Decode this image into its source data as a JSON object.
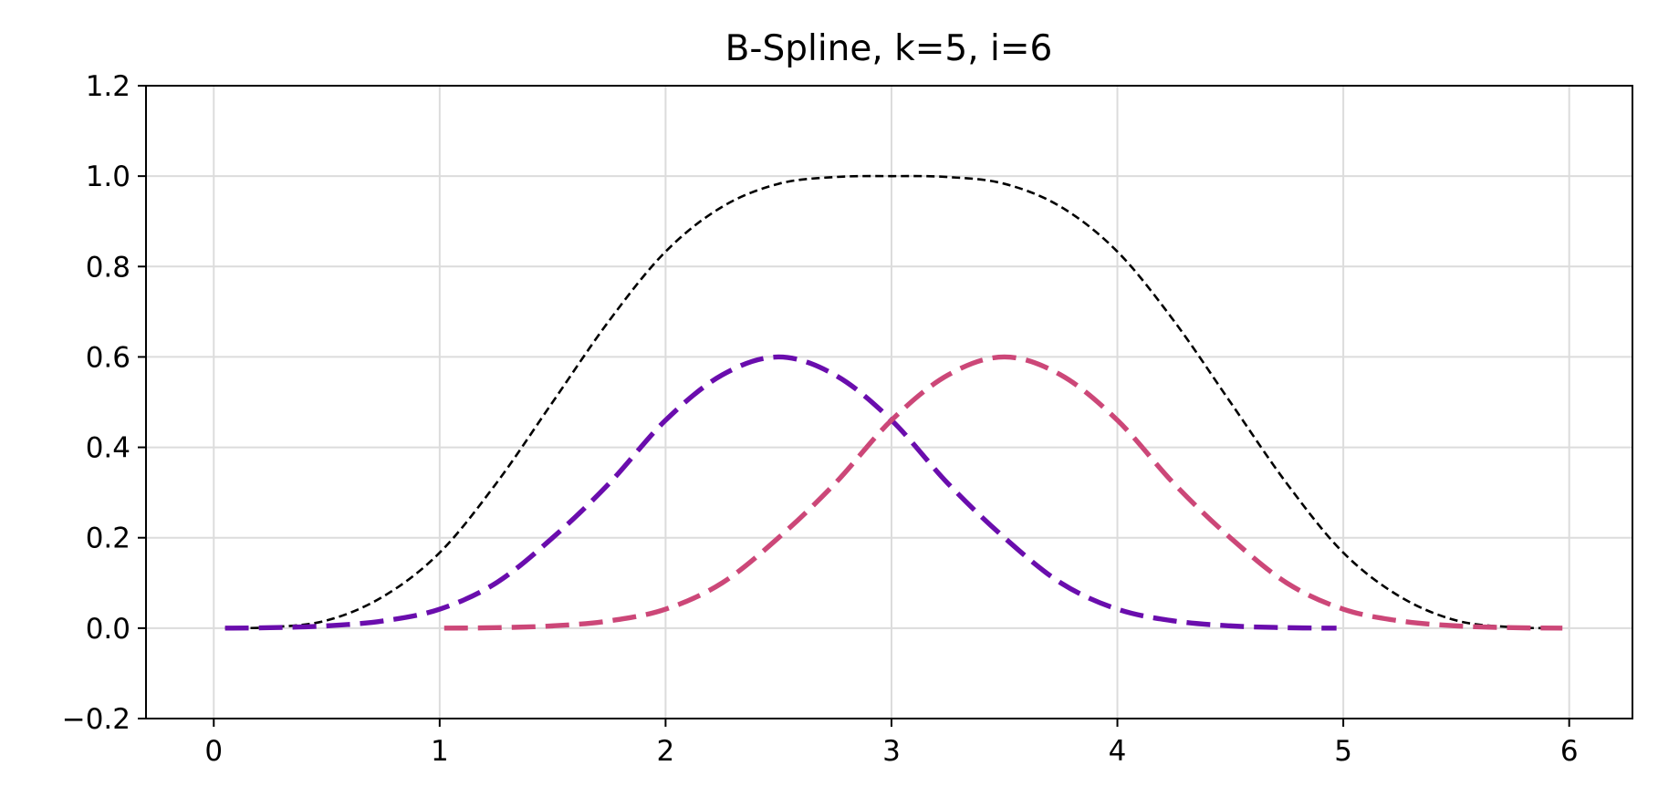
{
  "chart_data": {
    "type": "line",
    "title": "B-Spline, k=5, i=6",
    "xlabel": "",
    "ylabel": "",
    "xlim": [
      -0.3,
      6.28
    ],
    "ylim": [
      -0.2,
      1.2
    ],
    "grid": true,
    "legend": "none",
    "x_ticks": [
      0,
      1,
      2,
      3,
      4,
      5,
      6
    ],
    "x_tick_labels": [
      "0",
      "1",
      "2",
      "3",
      "4",
      "5",
      "6"
    ],
    "y_ticks": [
      -0.2,
      0.0,
      0.2,
      0.4,
      0.6,
      0.8,
      1.0,
      1.2
    ],
    "y_tick_labels": [
      "−0.2",
      "0.0",
      "0.2",
      "0.4",
      "0.6",
      "0.8",
      "1.0",
      "1.2"
    ],
    "series": [
      {
        "color": "#000000",
        "style": "dashed-thin",
        "x": [
          0.05,
          0.25,
          0.5,
          0.75,
          1.0,
          1.25,
          1.5,
          1.75,
          2.0,
          2.25,
          2.5,
          2.75,
          3.0,
          3.25,
          3.5,
          3.75,
          4.0,
          4.25,
          4.5,
          4.75,
          5.0,
          5.25,
          5.5,
          5.75,
          5.97
        ],
        "y": [
          0.0,
          0.002,
          0.017,
          0.07,
          0.167,
          0.32,
          0.5,
          0.68,
          0.833,
          0.932,
          0.983,
          0.998,
          1.0,
          0.998,
          0.983,
          0.932,
          0.833,
          0.68,
          0.5,
          0.32,
          0.167,
          0.07,
          0.017,
          0.002,
          0.0
        ]
      },
      {
        "color": "#6a0dad",
        "style": "dashed-thick",
        "x": [
          0.05,
          0.25,
          0.5,
          0.75,
          1.0,
          1.25,
          1.5,
          1.75,
          2.0,
          2.25,
          2.5,
          2.75,
          3.0,
          3.25,
          3.5,
          3.75,
          4.0,
          4.25,
          4.5,
          4.75,
          4.97
        ],
        "y": [
          0.0,
          0.001,
          0.005,
          0.016,
          0.042,
          0.1,
          0.2,
          0.32,
          0.46,
          0.56,
          0.6,
          0.56,
          0.46,
          0.32,
          0.2,
          0.1,
          0.042,
          0.016,
          0.005,
          0.001,
          0.0
        ]
      },
      {
        "color": "#cc4778",
        "style": "dashed-thick",
        "x": [
          1.02,
          1.25,
          1.5,
          1.75,
          2.0,
          2.25,
          2.5,
          2.75,
          3.0,
          3.25,
          3.5,
          3.75,
          4.0,
          4.25,
          4.5,
          4.75,
          5.0,
          5.25,
          5.5,
          5.75,
          5.97
        ],
        "y": [
          0.0,
          0.001,
          0.005,
          0.016,
          0.042,
          0.1,
          0.2,
          0.32,
          0.46,
          0.56,
          0.6,
          0.56,
          0.46,
          0.32,
          0.2,
          0.1,
          0.042,
          0.016,
          0.005,
          0.001,
          0.0
        ]
      }
    ]
  }
}
